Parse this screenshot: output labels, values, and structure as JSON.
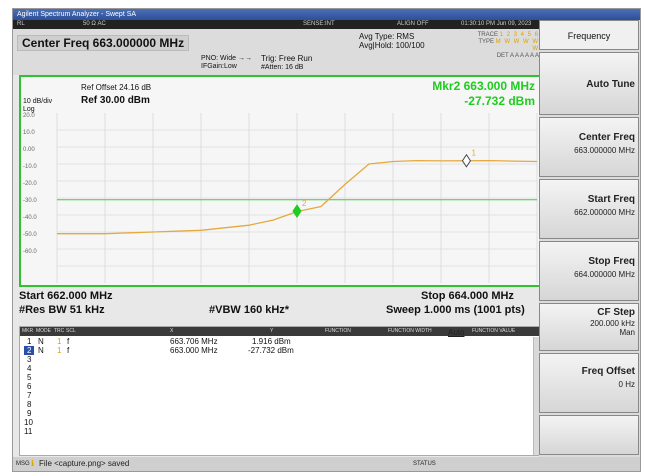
{
  "window": {
    "title": "Agilent Spectrum Analyzer - Swept SA"
  },
  "status": {
    "mode": "RL",
    "coupling": "50 Ω  AC",
    "sense": "SENSE:INT",
    "align": "ALIGN OFF",
    "datetime": "01:30:10 PM Jun 09, 2023"
  },
  "info": {
    "center_freq": "Center Freq 663.000000 MHz",
    "pno": "PNO: Wide →→",
    "ifgain": "IFGain:Low",
    "trig": "Trig: Free Run",
    "atten": "#Atten: 16 dB",
    "avg_type": "Avg Type: RMS",
    "avg_hold": "Avg|Hold: 100/100",
    "trace_label": "TRACE",
    "trace_nums": "1 2 3 4 5 6",
    "type_label": "TYPE",
    "type_vals": "M W W W W W",
    "det_label": "DET",
    "det_vals": "A A A A A A"
  },
  "plot": {
    "ref_offset": "Ref Offset 24.16 dB",
    "scale": "10 dB/div",
    "ref_level": "Ref 30.00 dBm",
    "log": "Log",
    "marker_freq": "Mkr2 663.000 MHz",
    "marker_amp": "-27.732 dBm",
    "y_ticks": [
      "20.0",
      "10.0",
      "0.00",
      "-10.0",
      "-20.0",
      "-30.0",
      "-40.0",
      "-50.0",
      "-60.0"
    ]
  },
  "chart_data": {
    "type": "line",
    "xlabel": "",
    "ylabel": "",
    "xlim": [
      662.0,
      664.0
    ],
    "ylim": [
      -70,
      30
    ],
    "x": [
      662.0,
      662.2,
      662.4,
      662.6,
      662.8,
      662.9,
      663.0,
      663.1,
      663.2,
      663.3,
      663.4,
      663.5,
      663.6,
      663.7,
      663.8,
      663.9,
      664.0
    ],
    "series": [
      {
        "values": [
          -41,
          -41,
          -40,
          -39,
          -36,
          -33,
          -28,
          -25,
          -12,
          0,
          1.5,
          2,
          1.8,
          1.9,
          2,
          1.7,
          1.5
        ]
      }
    ],
    "markers": [
      {
        "label": "1",
        "x": 663.706,
        "y": 1.916
      },
      {
        "label": "2",
        "x": 663.0,
        "y": -27.732
      }
    ],
    "reference_line": -21
  },
  "footer": {
    "start": "Start 662.000 MHz",
    "stop": "Stop 664.000 MHz",
    "rbw": "#Res BW 51 kHz",
    "vbw": "#VBW 160 kHz*",
    "sweep": "Sweep  1.000 ms (1001 pts)"
  },
  "marker_table": {
    "headers": [
      "MKR",
      "MODE",
      "TRC",
      "SCL",
      "X",
      "Y",
      "FUNCTION",
      "FUNCTION WIDTH",
      "FUNCTION VALUE"
    ],
    "rows": [
      {
        "num": "1",
        "mode": "N",
        "trc": "1",
        "scl": "f",
        "x": "663.706 MHz",
        "y": "1.916 dBm"
      },
      {
        "num": "2",
        "mode": "N",
        "trc": "1",
        "scl": "f",
        "x": "663.000 MHz",
        "y": "-27.732 dBm"
      }
    ],
    "empty": [
      "3",
      "4",
      "5",
      "6",
      "7",
      "8",
      "9",
      "10",
      "11"
    ]
  },
  "bottom": {
    "message": "File <capture.png> saved",
    "status": "STATUS",
    "msg_prefix": "MSG"
  },
  "softkeys": {
    "title": "Frequency",
    "auto_tune": "Auto Tune",
    "center_freq": "Center Freq",
    "center_val": "663.000000 MHz",
    "start_freq": "Start Freq",
    "start_val": "662.000000 MHz",
    "stop_freq": "Stop Freq",
    "stop_val": "664.000000 MHz",
    "cf_step": "CF Step",
    "cf_val": "200.000 kHz",
    "auto": "Auto",
    "man": "Man",
    "freq_offset": "Freq Offset",
    "offset_val": "0 Hz"
  },
  "colors": {
    "trace": "#e5a93c",
    "grid": "#cfcfcf",
    "border": "#30c030",
    "marker_green": "#1fcc1f",
    "ref_line": "#3dcc3d"
  }
}
